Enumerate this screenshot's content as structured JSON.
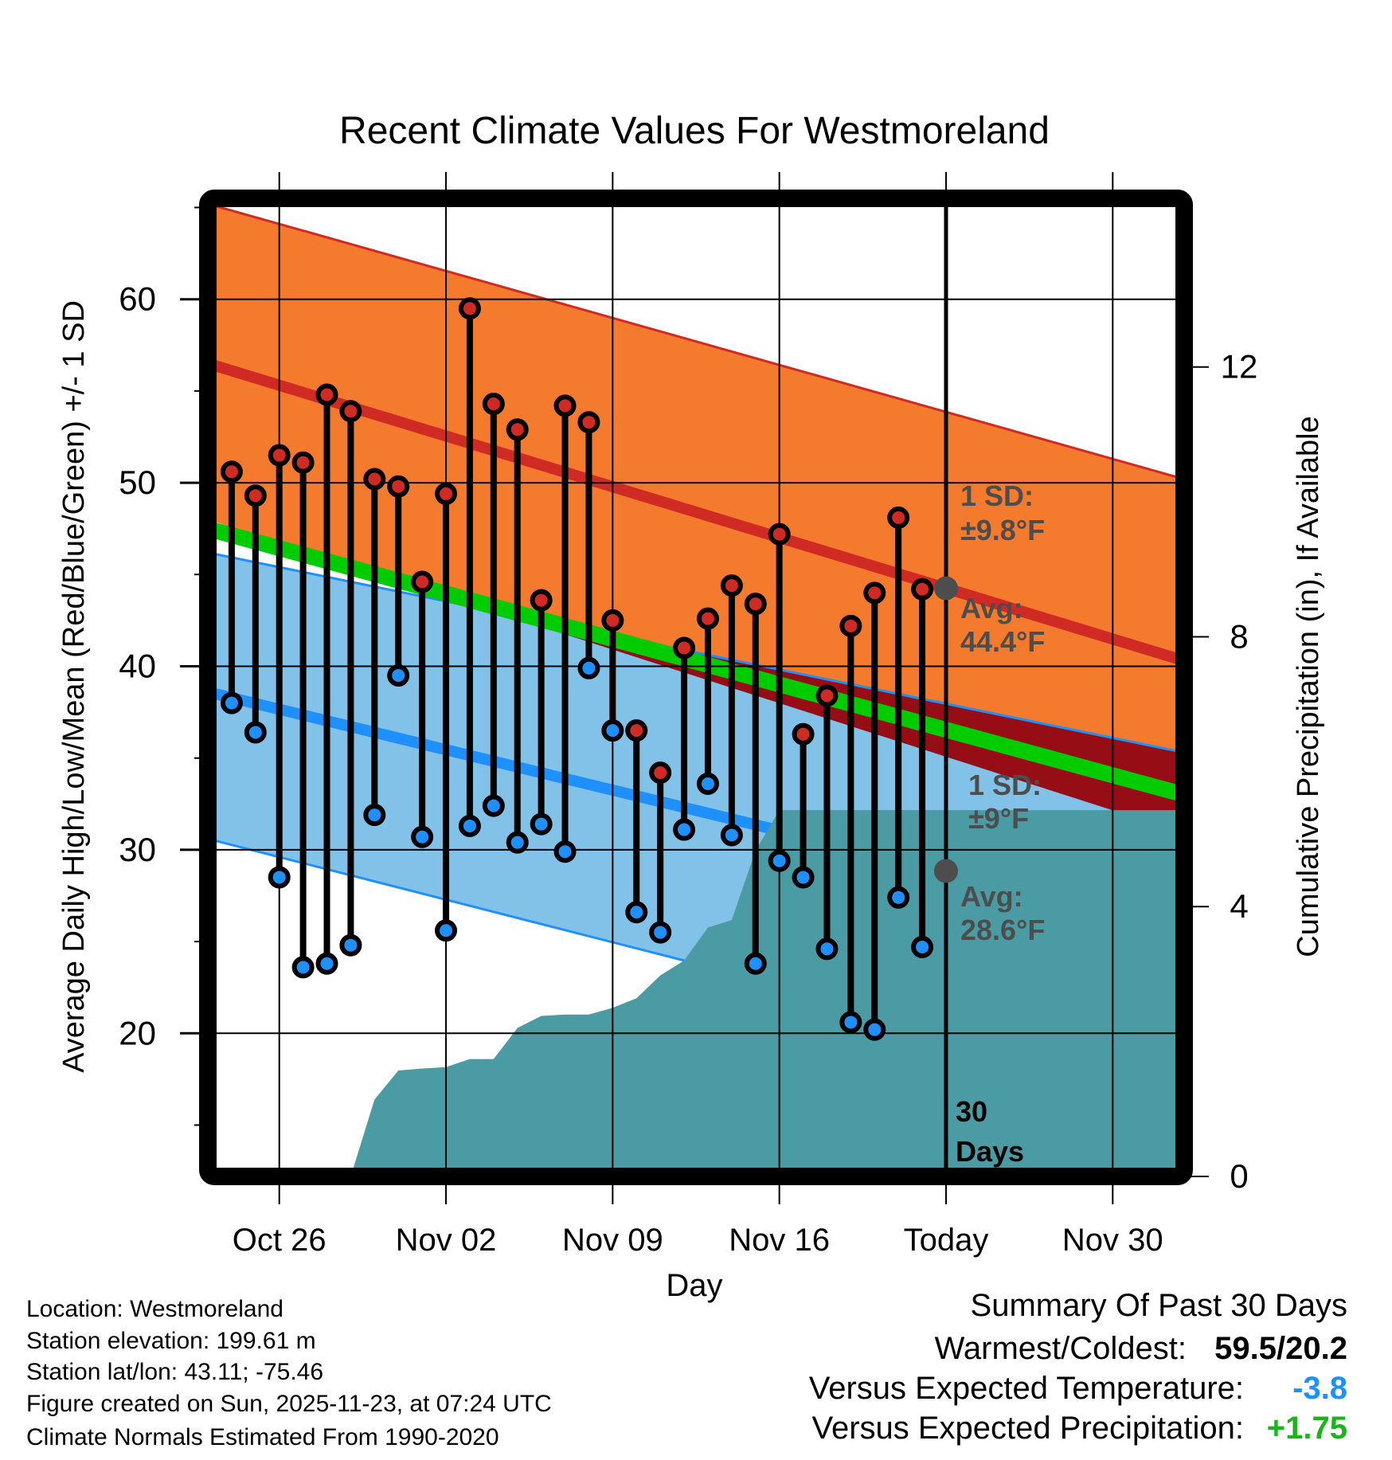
{
  "chart_data": {
    "type": "line",
    "title": "Recent Climate Values For Westmoreland",
    "xlabel": "Day",
    "ylabel": "Average Daily High/Low/Mean (Red/Blue/Green) +/- 1 SD",
    "y2label": "Cumulative Precipitation (in), If Available",
    "x_reference": "Oct 26",
    "x_range_days": [
      -3,
      38
    ],
    "ylim": [
      12.2,
      65.5
    ],
    "y_ticks": [
      20,
      30,
      40,
      50,
      60
    ],
    "y_minor_ticks": [
      15,
      25,
      35,
      45,
      55,
      65
    ],
    "y2lim": [
      0,
      14.5
    ],
    "y2_ticks": [
      0,
      4,
      8,
      12
    ],
    "x_ticks": [
      {
        "day": 0,
        "label": "Oct 26"
      },
      {
        "day": 7,
        "label": "Nov 02"
      },
      {
        "day": 14,
        "label": "Nov 09"
      },
      {
        "day": 21,
        "label": "Nov 16"
      },
      {
        "day": 28,
        "label": "Today"
      },
      {
        "day": 35,
        "label": "Nov 30"
      }
    ],
    "today_day": 28,
    "grid": true,
    "normals": {
      "avg_high": {
        "start": 56.5,
        "end": 40.3
      },
      "high_plus_sd": {
        "start": 65.2,
        "end": 50.2
      },
      "high_minus_sd": {
        "start": 48.0,
        "end": 30.9
      },
      "avg_low": {
        "start": 38.6,
        "end": 25.7
      },
      "low_plus_sd": {
        "start": 46.2,
        "end": 35.3
      },
      "low_minus_sd": {
        "start": 30.6,
        "end": 17.0
      },
      "avg_mean": {
        "start": 47.5,
        "end": 33.0
      }
    },
    "observations": {
      "days": [
        -2,
        -1,
        0,
        1,
        2,
        3,
        4,
        5,
        6,
        7,
        8,
        9,
        10,
        11,
        12,
        13,
        14,
        15,
        16,
        17,
        18,
        19,
        20,
        21,
        22,
        23,
        24,
        25,
        26,
        27
      ],
      "highs": [
        50.6,
        49.3,
        51.5,
        51.1,
        54.8,
        53.9,
        50.2,
        49.8,
        44.6,
        49.4,
        59.5,
        54.3,
        52.9,
        43.6,
        54.2,
        53.3,
        42.5,
        36.5,
        34.2,
        41.0,
        42.6,
        44.4,
        43.4,
        47.2,
        36.3,
        38.4,
        42.2,
        44.0,
        48.1,
        44.2
      ],
      "lows": [
        38.0,
        36.4,
        28.5,
        23.6,
        23.8,
        24.8,
        31.9,
        39.5,
        30.7,
        25.6,
        31.3,
        32.4,
        30.4,
        31.4,
        29.9,
        39.9,
        36.5,
        26.6,
        25.5,
        31.1,
        33.6,
        30.8,
        23.8,
        29.4,
        28.5,
        24.6,
        20.6,
        20.2,
        27.4,
        24.7
      ]
    },
    "precipitation": {
      "days": [
        3,
        4,
        5,
        6,
        7,
        8,
        9,
        10,
        11,
        12,
        13,
        14,
        15,
        16,
        17,
        18,
        19,
        20,
        21,
        22,
        23,
        24,
        25,
        26,
        27,
        38
      ],
      "cumulative_in": [
        0,
        1.14,
        1.57,
        1.6,
        1.62,
        1.74,
        1.74,
        2.2,
        2.38,
        2.4,
        2.4,
        2.5,
        2.64,
        2.98,
        3.2,
        3.69,
        3.8,
        4.83,
        5.43,
        5.43,
        5.43,
        5.43,
        5.43,
        5.43,
        5.43,
        5.43
      ]
    },
    "annotations": {
      "high_sd_line1": "1 SD:",
      "high_sd_line2": "±9.8°F",
      "high_avg_line1": "Avg:",
      "high_avg_line2": "44.4°F",
      "low_sd_line1": "1 SD:",
      "low_sd_line2": "±9°F",
      "low_avg_line1": "Avg:",
      "low_avg_line2": "28.6°F",
      "window_line1": "30",
      "window_line2": "Days"
    },
    "colors": {
      "high_band": "#f47a2e",
      "high_line": "#d02a25",
      "low_band": "#82c1e8",
      "low_line": "#1e90ff",
      "overlap": "#960d15",
      "mean": "#00cc00",
      "precip": "#4a9ba3",
      "annotation": "#4d4d4d",
      "temp_anomaly": "#1e90ff",
      "precip_anomaly": "#1db31d"
    }
  },
  "footer": {
    "location": "Location: Westmoreland",
    "elevation": "Station elevation: 199.61 m",
    "latlon": "Station lat/lon: 43.11; -75.46",
    "created": "Figure created on Sun, 2025-11-23, at 07:24 UTC",
    "normals": "Climate Normals Estimated From 1990-2020"
  },
  "summary": {
    "title": "Summary Of Past 30 Days",
    "warm_cold_label": "Warmest/Coldest:",
    "warm_cold_value": "59.5/20.2",
    "temp_label": "Versus Expected Temperature:",
    "temp_value": "-3.8",
    "precip_label": "Versus Expected Precipitation:",
    "precip_value": "+1.75"
  }
}
